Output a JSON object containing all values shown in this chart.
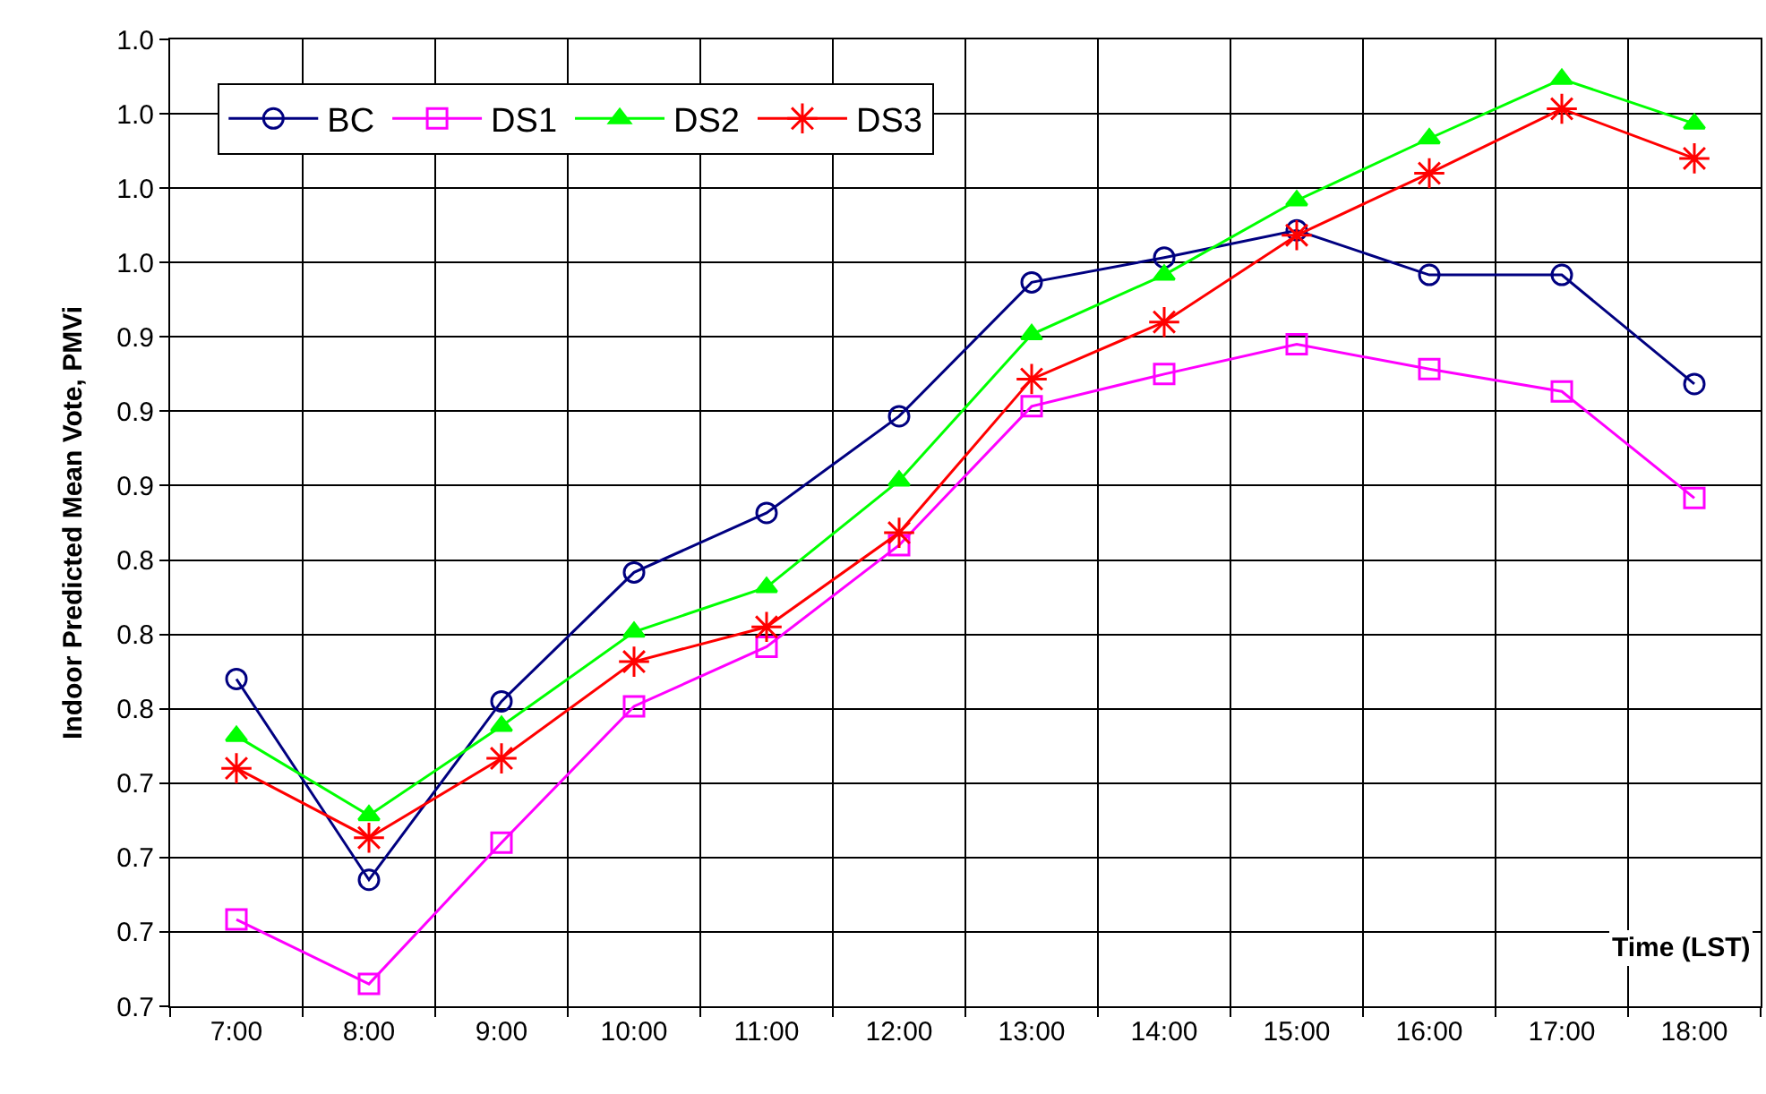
{
  "chart_data": {
    "type": "line",
    "xlabel": "Time (LST)",
    "ylabel": "Indoor Predicted Mean Vote, PMVi",
    "categories": [
      "7:00",
      "8:00",
      "9:00",
      "10:00",
      "11:00",
      "12:00",
      "13:00",
      "14:00",
      "15:00",
      "16:00",
      "17:00",
      "18:00"
    ],
    "series": [
      {
        "name": "BC",
        "color": "#000080",
        "marker": "circle",
        "values": [
          0.782,
          0.701,
          0.773,
          0.825,
          0.849,
          0.888,
          0.942,
          0.952,
          0.963,
          0.945,
          0.945,
          0.901
        ]
      },
      {
        "name": "DS1",
        "color": "#ff00ff",
        "marker": "square",
        "values": [
          0.685,
          0.659,
          0.716,
          0.771,
          0.795,
          0.836,
          0.892,
          0.905,
          0.917,
          0.907,
          0.898,
          0.855
        ]
      },
      {
        "name": "DS2",
        "color": "#00ff00",
        "marker": "triangle",
        "values": [
          0.759,
          0.727,
          0.763,
          0.801,
          0.819,
          0.862,
          0.921,
          0.945,
          0.975,
          1.0,
          1.024,
          1.006
        ]
      },
      {
        "name": "DS3",
        "color": "#ff0000",
        "marker": "cross",
        "values": [
          0.746,
          0.718,
          0.75,
          0.789,
          0.803,
          0.841,
          0.903,
          0.926,
          0.961,
          0.986,
          1.012,
          0.992
        ]
      }
    ],
    "ylim": [
      0.65,
      1.04
    ],
    "yticks": [
      {
        "value": 0.65,
        "label": "0.7"
      },
      {
        "value": 0.68,
        "label": "0.7"
      },
      {
        "value": 0.71,
        "label": "0.7"
      },
      {
        "value": 0.74,
        "label": "0.7"
      },
      {
        "value": 0.77,
        "label": "0.8"
      },
      {
        "value": 0.8,
        "label": "0.8"
      },
      {
        "value": 0.83,
        "label": "0.8"
      },
      {
        "value": 0.86,
        "label": "0.9"
      },
      {
        "value": 0.89,
        "label": "0.9"
      },
      {
        "value": 0.92,
        "label": "0.9"
      },
      {
        "value": 0.95,
        "label": "1.0"
      },
      {
        "value": 0.98,
        "label": "1.0"
      },
      {
        "value": 1.01,
        "label": "1.0"
      },
      {
        "value": 1.04,
        "label": "1.0"
      }
    ],
    "grid": true,
    "legend": "top left",
    "line_style": "solid"
  }
}
